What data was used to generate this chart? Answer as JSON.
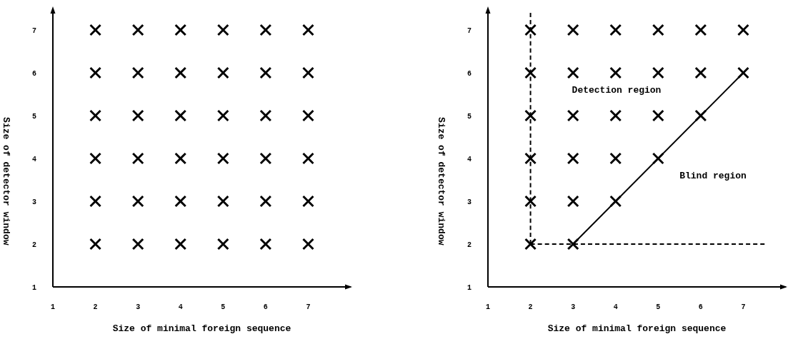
{
  "chart_data": [
    {
      "type": "scatter",
      "xlabel": "Size of minimal foreign sequence",
      "ylabel": "Size of detector window",
      "x": [
        2,
        2,
        2,
        2,
        2,
        2,
        3,
        3,
        3,
        3,
        3,
        3,
        4,
        4,
        4,
        4,
        4,
        4,
        5,
        5,
        5,
        5,
        5,
        5,
        6,
        6,
        6,
        6,
        6,
        6,
        7,
        7,
        7,
        7,
        7,
        7
      ],
      "values": [
        2,
        3,
        4,
        5,
        6,
        7,
        2,
        3,
        4,
        5,
        6,
        7,
        2,
        3,
        4,
        5,
        6,
        7,
        2,
        3,
        4,
        5,
        6,
        7,
        2,
        3,
        4,
        5,
        6,
        7,
        2,
        3,
        4,
        5,
        6,
        7
      ],
      "color": "#000000",
      "marker": "cross",
      "xlim": [
        1,
        8
      ],
      "ylim": [
        1,
        7.5
      ],
      "xticks": [
        1,
        2,
        3,
        4,
        5,
        6,
        7
      ],
      "yticks": [
        1,
        2,
        3,
        4,
        5,
        6,
        7
      ]
    },
    {
      "type": "scatter",
      "xlabel": "Size of minimal foreign sequence",
      "ylabel": "Size of detector window",
      "series": [
        {
          "type": "line",
          "x": [
            2,
            2
          ],
          "values": [
            2,
            7.4
          ],
          "color": "#000000",
          "line_style": "dashed",
          "marker": "none"
        },
        {
          "type": "line",
          "x": [
            2,
            7.5
          ],
          "values": [
            2,
            2
          ],
          "color": "#000000",
          "line_style": "dashed",
          "marker": "none"
        },
        {
          "type": "line",
          "x": [
            3,
            7
          ],
          "values": [
            2,
            6
          ],
          "color": "#000000",
          "line_style": "solid",
          "marker": "none"
        },
        {
          "x": [
            2,
            2,
            2,
            2,
            2,
            2,
            3,
            3,
            3,
            3,
            3,
            3,
            4,
            4,
            4,
            4,
            4,
            5,
            5,
            5,
            5,
            6,
            6,
            6,
            7,
            7
          ],
          "values": [
            2,
            3,
            4,
            5,
            6,
            7,
            2,
            3,
            4,
            5,
            6,
            7,
            3,
            4,
            5,
            6,
            7,
            4,
            5,
            6,
            7,
            5,
            6,
            7,
            6,
            7
          ],
          "color": "#000000",
          "marker": "cross"
        }
      ],
      "annotations": [
        "Detection region",
        "Blind region"
      ],
      "xlim": [
        1,
        8
      ],
      "ylim": [
        1,
        7.5
      ],
      "xticks": [
        1,
        2,
        3,
        4,
        5,
        6,
        7
      ],
      "yticks": [
        1,
        2,
        3,
        4,
        5,
        6,
        7
      ]
    }
  ]
}
